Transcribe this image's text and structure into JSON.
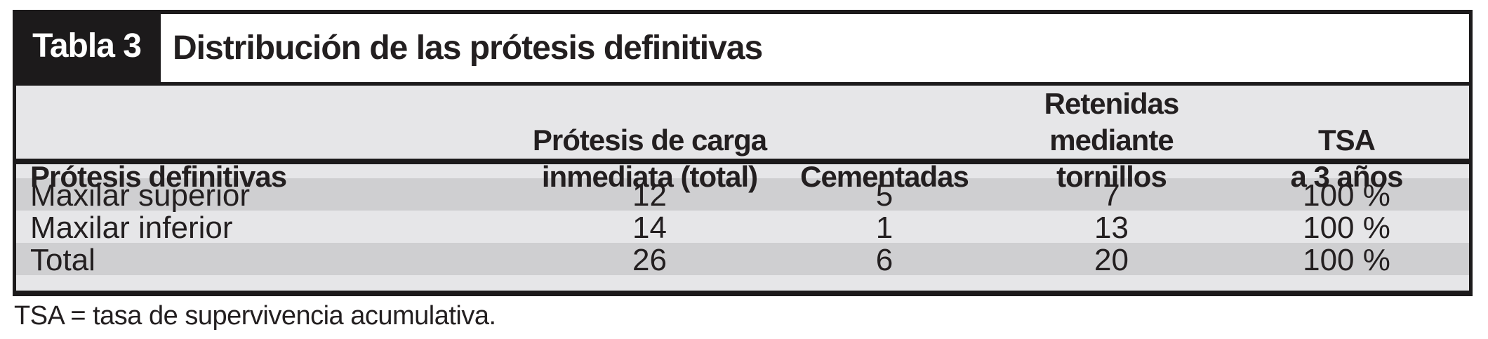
{
  "table": {
    "tag_label": "Tabla 3",
    "title": "Distribución de las prótesis definitivas",
    "headers": [
      {
        "line1": "",
        "line2": "Prótesis definitivas"
      },
      {
        "line1": "Prótesis de carga",
        "line2": "inmediata (total)"
      },
      {
        "line1": "",
        "line2": "Cementadas"
      },
      {
        "line1": "Retenidas mediante",
        "line2": "tornillos"
      },
      {
        "line1": "TSA",
        "line2": "a 3 años"
      }
    ],
    "rows": [
      {
        "label": "Maxilar superior",
        "carga_total": "12",
        "cementadas": "5",
        "tornillos": "7",
        "tsa": "100 %"
      },
      {
        "label": "Maxilar inferior",
        "carga_total": "14",
        "cementadas": "1",
        "tornillos": "13",
        "tsa": "100 %"
      },
      {
        "label": "Total",
        "carga_total": "26",
        "cementadas": "6",
        "tornillos": "20",
        "tsa": "100 %"
      }
    ],
    "footnote": "TSA = tasa de supervivencia acumulativa."
  },
  "colors": {
    "band_light": "#e6e6e8",
    "band_medium": "#cfcfd1",
    "ink": "#231f20",
    "tab_background": "#1c1a1b",
    "tab_text": "#ffffff"
  }
}
